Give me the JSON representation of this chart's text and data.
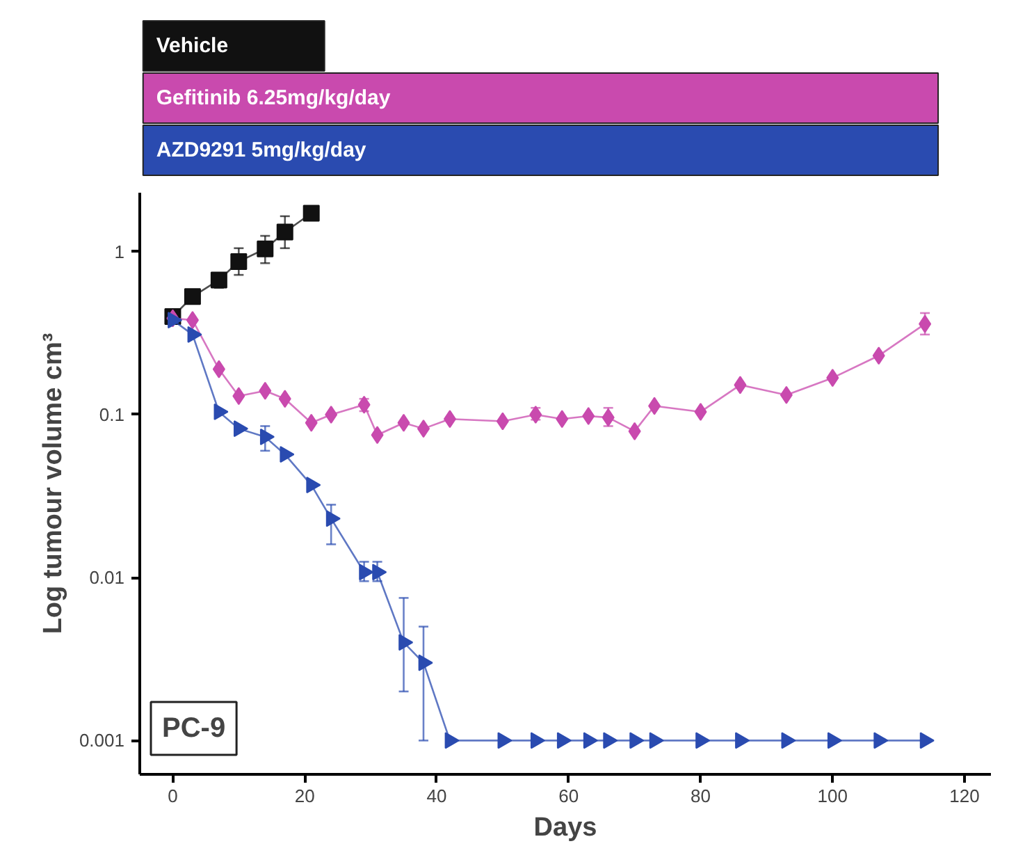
{
  "chart_data": {
    "type": "line",
    "xlabel": "Days",
    "ylabel": "Log tumour volume cm³",
    "log": true,
    "xlim": [
      -5,
      124
    ],
    "ylim": [
      0.00062,
      2.3
    ],
    "xticks": [
      0,
      20,
      40,
      60,
      80,
      100,
      120
    ],
    "yticks": [
      {
        "value": 0.001,
        "label": "0.001"
      },
      {
        "value": 0.01,
        "label": "0.01"
      },
      {
        "value": 0.1,
        "label": "0.1"
      },
      {
        "value": 1,
        "label": "1"
      }
    ],
    "grid": false,
    "legend": "top",
    "line_style": "solid",
    "annotations": [
      "PC-9"
    ],
    "series": [
      {
        "name": "Vehicle",
        "color": "#111111",
        "marker": "square",
        "x": [
          0,
          3,
          7,
          10,
          14,
          17,
          21
        ],
        "values": [
          0.4,
          0.53,
          0.67,
          0.87,
          1.04,
          1.32,
          1.72
        ],
        "errors": [
          null,
          null,
          [
            0.6,
            0.72
          ],
          [
            0.72,
            1.05
          ],
          [
            0.85,
            1.25
          ],
          [
            1.05,
            1.65
          ],
          null
        ]
      },
      {
        "name": "Gefitinib 6.25mg/kg/day",
        "color": "#c94aae",
        "marker": "diamond",
        "x": [
          0,
          3,
          7,
          10,
          14,
          17,
          21,
          24,
          29,
          31,
          35,
          38,
          42,
          50,
          55,
          59,
          63,
          66,
          70,
          73,
          80,
          86,
          93,
          100,
          107,
          114
        ],
        "values": [
          0.39,
          0.38,
          0.19,
          0.13,
          0.14,
          0.125,
          0.089,
          0.1,
          0.115,
          0.075,
          0.089,
          0.082,
          0.094,
          0.091,
          0.1,
          0.094,
          0.098,
          0.096,
          0.079,
          0.113,
          0.104,
          0.152,
          0.132,
          0.168,
          0.23,
          0.36
        ],
        "errors": [
          null,
          null,
          null,
          null,
          null,
          null,
          null,
          null,
          [
            0.105,
            0.125
          ],
          null,
          null,
          null,
          null,
          null,
          [
            0.093,
            0.11
          ],
          null,
          null,
          [
            0.085,
            0.11
          ],
          null,
          null,
          null,
          null,
          null,
          null,
          null,
          [
            0.31,
            0.42
          ]
        ]
      },
      {
        "name": "AZD9291 5mg/kg/day",
        "color": "#2a4bb0",
        "marker": "triangle",
        "x": [
          0,
          3,
          7,
          10,
          14,
          17,
          21,
          24,
          29,
          31,
          35,
          38,
          42,
          50,
          55,
          59,
          63,
          66,
          70,
          73,
          80,
          86,
          93,
          100,
          107,
          114
        ],
        "values": [
          0.38,
          0.31,
          0.104,
          0.082,
          0.073,
          0.057,
          0.037,
          0.023,
          0.0108,
          0.0108,
          0.004,
          0.003,
          0.001,
          0.001,
          0.001,
          0.001,
          0.001,
          0.001,
          0.001,
          0.001,
          0.001,
          0.001,
          0.001,
          0.001,
          0.001,
          0.001
        ],
        "errors": [
          null,
          null,
          null,
          null,
          [
            0.06,
            0.085
          ],
          null,
          null,
          [
            0.016,
            0.028
          ],
          [
            0.0095,
            0.0125
          ],
          [
            0.0095,
            0.0125
          ],
          [
            0.002,
            0.0075
          ],
          [
            0.001,
            0.005
          ],
          null,
          null,
          null,
          null,
          null,
          null,
          null,
          null,
          null,
          null,
          null,
          null,
          null,
          null
        ]
      }
    ]
  }
}
